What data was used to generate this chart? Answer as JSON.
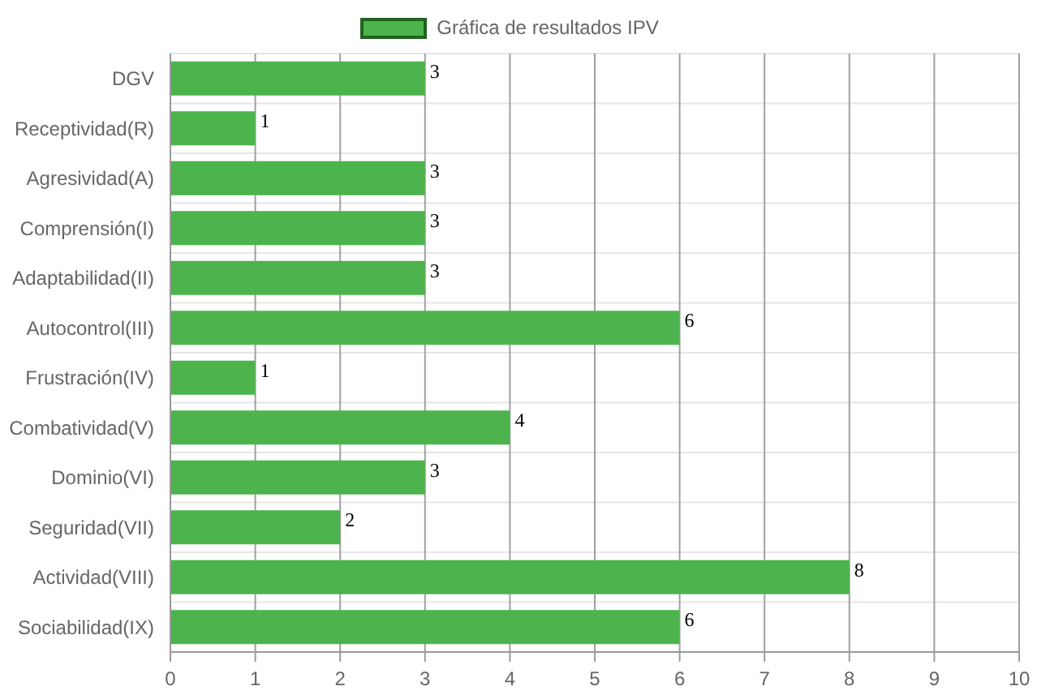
{
  "chart_data": {
    "type": "bar",
    "orientation": "horizontal",
    "categories": [
      "DGV",
      "Receptividad(R)",
      "Agresividad(A)",
      "Comprensión(I)",
      "Adaptabilidad(II)",
      "Autocontrol(III)",
      "Frustración(IV)",
      "Combatividad(V)",
      "Dominio(VI)",
      "Seguridad(VII)",
      "Actividad(VIII)",
      "Sociabilidad(IX)"
    ],
    "series": [
      {
        "name": "Gráfica de resultados IPV",
        "color": "#4db34d",
        "values": [
          3,
          1,
          3,
          3,
          3,
          6,
          1,
          4,
          3,
          2,
          8,
          6
        ]
      }
    ],
    "xlim": [
      0,
      10
    ],
    "xticks": [
      0,
      1,
      2,
      3,
      4,
      5,
      6,
      7,
      8,
      9,
      10
    ],
    "grid": true,
    "legend": "top",
    "data_labels": true
  }
}
